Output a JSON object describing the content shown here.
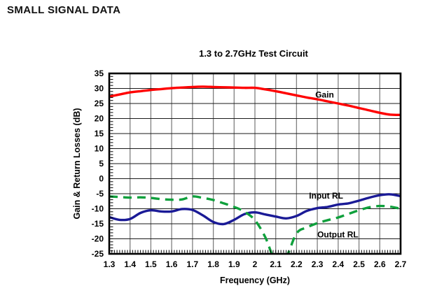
{
  "page": {
    "heading": "SMALL SIGNAL DATA"
  },
  "chart_data": {
    "type": "line",
    "title": "1.3 to 2.7GHz Test Circuit",
    "xlabel": "Frequency (GHz)",
    "ylabel": "Gain & Return Losses (dB)",
    "xlim": [
      1.3,
      2.7
    ],
    "ylim": [
      -25,
      35
    ],
    "grid": true,
    "x_tick_labels": [
      "1.3",
      "1.4",
      "1.5",
      "1.6",
      "1.7",
      "1.8",
      "1.9",
      "2",
      "2.1",
      "2.2",
      "2.3",
      "2.4",
      "2.5",
      "2.6",
      "2.7"
    ],
    "y_tick_labels": [
      "35",
      "30",
      "25",
      "20",
      "15",
      "10",
      "5",
      "0",
      "-5",
      "-10",
      "-15",
      "-20",
      "-25"
    ],
    "x_minor_step": 0.0125,
    "y_minor_step": 1,
    "legend_position": "inline-annotations",
    "colors": {
      "gain": "#FF0000",
      "input_rl": "#1A1A96",
      "output_rl": "#0FA03C",
      "grid_horizontal": "#1a1a1a",
      "grid_vertical": "#808080",
      "axis": "#000000",
      "text": "#000000",
      "background": "#ffffff"
    },
    "series": [
      {
        "name": "Gain",
        "color": "#FF0000",
        "style": "solid",
        "points": [
          [
            1.3,
            27.3
          ],
          [
            1.35,
            28.0
          ],
          [
            1.4,
            28.7
          ],
          [
            1.45,
            29.1
          ],
          [
            1.5,
            29.5
          ],
          [
            1.55,
            29.8
          ],
          [
            1.6,
            30.1
          ],
          [
            1.65,
            30.3
          ],
          [
            1.7,
            30.5
          ],
          [
            1.75,
            30.6
          ],
          [
            1.8,
            30.5
          ],
          [
            1.85,
            30.4
          ],
          [
            1.9,
            30.3
          ],
          [
            1.95,
            30.2
          ],
          [
            2.0,
            30.2
          ],
          [
            2.05,
            29.7
          ],
          [
            2.1,
            29.1
          ],
          [
            2.15,
            28.4
          ],
          [
            2.2,
            27.7
          ],
          [
            2.25,
            27.0
          ],
          [
            2.3,
            26.4
          ],
          [
            2.35,
            25.7
          ],
          [
            2.4,
            25.0
          ],
          [
            2.45,
            24.3
          ],
          [
            2.5,
            23.5
          ],
          [
            2.55,
            22.7
          ],
          [
            2.6,
            21.9
          ],
          [
            2.65,
            21.3
          ],
          [
            2.7,
            21.2
          ]
        ]
      },
      {
        "name": "Input RL",
        "color": "#1A1A96",
        "style": "solid",
        "points": [
          [
            1.3,
            -12.8
          ],
          [
            1.35,
            -13.7
          ],
          [
            1.4,
            -13.4
          ],
          [
            1.45,
            -11.4
          ],
          [
            1.5,
            -10.5
          ],
          [
            1.55,
            -10.9
          ],
          [
            1.6,
            -10.9
          ],
          [
            1.65,
            -10.1
          ],
          [
            1.7,
            -10.4
          ],
          [
            1.75,
            -12.2
          ],
          [
            1.8,
            -14.4
          ],
          [
            1.85,
            -15.1
          ],
          [
            1.9,
            -13.7
          ],
          [
            1.95,
            -11.8
          ],
          [
            2.0,
            -11.2
          ],
          [
            2.05,
            -11.9
          ],
          [
            2.1,
            -12.6
          ],
          [
            2.15,
            -13.2
          ],
          [
            2.2,
            -12.4
          ],
          [
            2.25,
            -10.7
          ],
          [
            2.3,
            -9.8
          ],
          [
            2.35,
            -9.4
          ],
          [
            2.4,
            -8.6
          ],
          [
            2.45,
            -8.2
          ],
          [
            2.5,
            -7.3
          ],
          [
            2.55,
            -6.3
          ],
          [
            2.6,
            -5.5
          ],
          [
            2.65,
            -5.2
          ],
          [
            2.7,
            -5.8
          ]
        ]
      },
      {
        "name": "Output RL",
        "color": "#0FA03C",
        "style": "dashed",
        "points": [
          [
            1.3,
            -5.9
          ],
          [
            1.35,
            -6.1
          ],
          [
            1.4,
            -6.3
          ],
          [
            1.45,
            -6.2
          ],
          [
            1.5,
            -6.4
          ],
          [
            1.55,
            -6.8
          ],
          [
            1.6,
            -7.0
          ],
          [
            1.65,
            -6.9
          ],
          [
            1.7,
            -5.9
          ],
          [
            1.75,
            -6.4
          ],
          [
            1.8,
            -7.1
          ],
          [
            1.85,
            -8.2
          ],
          [
            1.9,
            -9.4
          ],
          [
            1.95,
            -11.0
          ],
          [
            2.0,
            -13.8
          ],
          [
            2.05,
            -19.5
          ],
          [
            2.1,
            -27.5
          ],
          [
            2.15,
            -26.0
          ],
          [
            2.2,
            -18.2
          ],
          [
            2.25,
            -16.2
          ],
          [
            2.3,
            -14.8
          ],
          [
            2.35,
            -13.8
          ],
          [
            2.4,
            -12.9
          ],
          [
            2.45,
            -11.7
          ],
          [
            2.5,
            -10.5
          ],
          [
            2.55,
            -9.5
          ],
          [
            2.6,
            -9.1
          ],
          [
            2.65,
            -9.3
          ],
          [
            2.7,
            -10.0
          ]
        ]
      }
    ],
    "annotations": [
      {
        "text": "Gain",
        "x": 2.29,
        "y": 27.0
      },
      {
        "text": "Input RL",
        "x": 2.26,
        "y": -6.6
      },
      {
        "text": "Output RL",
        "x": 2.3,
        "y": -19.5
      }
    ]
  }
}
